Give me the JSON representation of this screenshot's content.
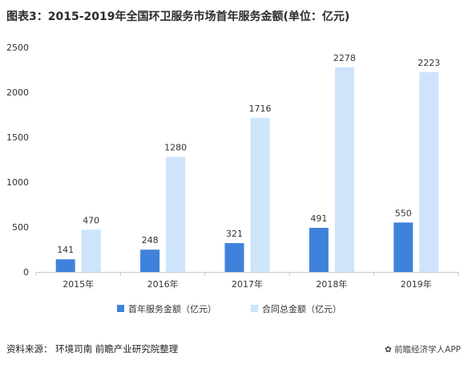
{
  "title": "图表3：2015-2019年全国环卫服务市场首年服务金额(单位：亿元)",
  "source": "资料来源：  环境司南  前瞻产业研究院整理",
  "wechat": "前瞻经济学人APP",
  "colors": {
    "series1": "#3f82dc",
    "series2": "#cde4fb",
    "axis": "#c8c8c8",
    "text": "#333333"
  },
  "chart_data": {
    "type": "bar",
    "categories": [
      "2015年",
      "2016年",
      "2017年",
      "2018年",
      "2019年"
    ],
    "series": [
      {
        "name": "首年服务金额（亿元）",
        "values": [
          141,
          248,
          321,
          491,
          550
        ]
      },
      {
        "name": "合同总金额（亿元）",
        "values": [
          470,
          1280,
          1716,
          2278,
          2223
        ]
      }
    ],
    "ylim": [
      0,
      2500
    ],
    "yticks": [
      0,
      500,
      1000,
      1500,
      2000,
      2500
    ],
    "grid": false,
    "legend": "bottom"
  }
}
